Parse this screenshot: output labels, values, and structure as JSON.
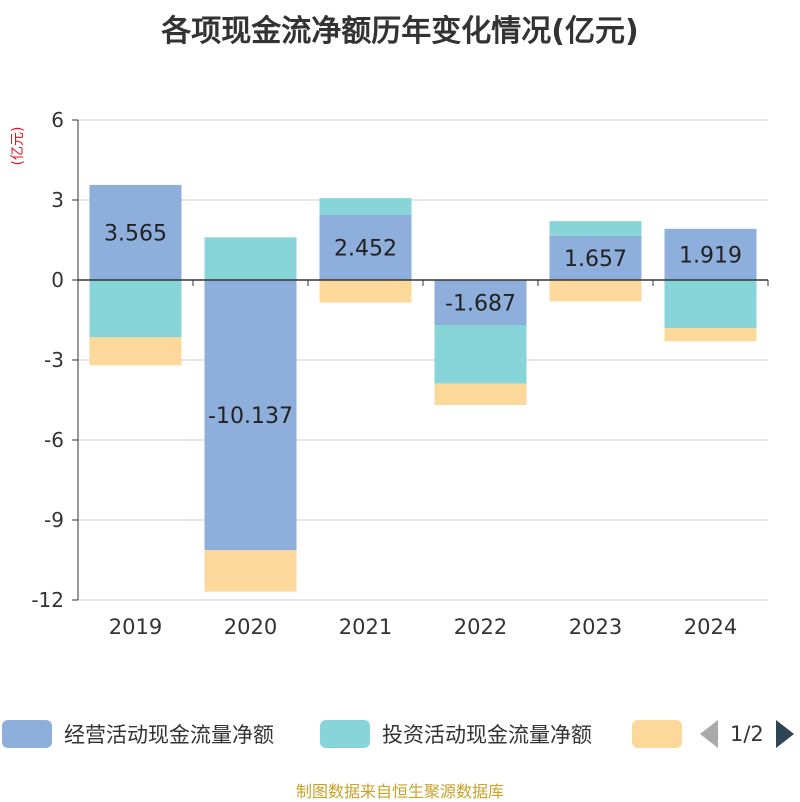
{
  "chart_data": {
    "type": "bar",
    "stacked": true,
    "title": "各项现金流净额历年变化情况(亿元)",
    "ylabel": "(亿元)",
    "xlabel": "",
    "categories": [
      "2019",
      "2020",
      "2021",
      "2022",
      "2023",
      "2024"
    ],
    "ylim": [
      -12,
      6
    ],
    "yticks": [
      6,
      3,
      0,
      -3,
      -6,
      -9,
      -12
    ],
    "grid": true,
    "series": [
      {
        "name": "经营活动现金流量净额",
        "color": "#8eaedb",
        "values": [
          3.565,
          -10.137,
          2.452,
          -1.687,
          1.657,
          1.919
        ],
        "labels": [
          "3.565",
          "-10.137",
          "2.452",
          "-1.687",
          "1.657",
          "1.919"
        ]
      },
      {
        "name": "投资活动现金流量净额",
        "color": "#87d5d8",
        "values": [
          -2.15,
          1.6,
          0.62,
          -2.2,
          0.55,
          -1.8
        ]
      },
      {
        "name": "",
        "color": "#fcd89a",
        "values": [
          -1.05,
          -1.55,
          -0.85,
          -0.8,
          -0.8,
          -0.5
        ]
      }
    ]
  },
  "legend": {
    "items": [
      "经营活动现金流量净额",
      "投资活动现金流量净额",
      ""
    ],
    "page": "1/2"
  },
  "source": "制图数据来自恒生聚源数据库"
}
